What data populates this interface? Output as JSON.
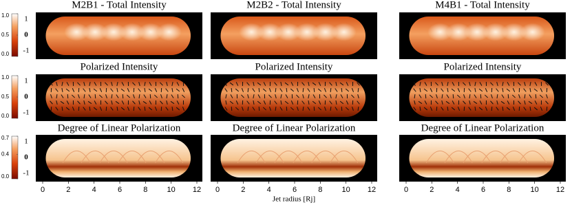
{
  "rows": [
    {
      "titles": [
        "M2B1 - Total Intensity",
        "M2B2 - Total Intensity",
        "M4B1 - Total Intensity"
      ],
      "colorbar_ticks": [
        {
          "value": 1,
          "label": "1.0"
        },
        {
          "value": 0.5,
          "label": "0.5"
        },
        {
          "value": 0,
          "label": "0.0"
        }
      ],
      "scale_ticks": [
        1,
        0,
        -1
      ]
    },
    {
      "titles": [
        "Polarized Intensity",
        "Polarized Intensity",
        "Polarized Intensity"
      ],
      "colorbar_ticks": [
        {
          "value": 1,
          "label": "1.0"
        },
        {
          "value": 0.5,
          "label": "0.5"
        },
        {
          "value": 0,
          "label": "0.0"
        }
      ],
      "scale_ticks": [
        1,
        0,
        -1
      ]
    },
    {
      "titles": [
        "Degree of Linear Polarization",
        "Degree of Linear Polarization",
        "Degree of Linear Polarization"
      ],
      "colorbar_ticks": [
        {
          "value": 0.7,
          "label": "0.7"
        },
        {
          "value": 0.4,
          "label": "0.4"
        },
        {
          "value": 0,
          "label": "0.0"
        }
      ],
      "scale_ticks": [
        1,
        0,
        -1
      ]
    }
  ],
  "x_axis": {
    "label": "Jet radius [Rj]",
    "ticks": [
      0,
      2,
      4,
      6,
      8,
      10,
      12
    ]
  }
}
